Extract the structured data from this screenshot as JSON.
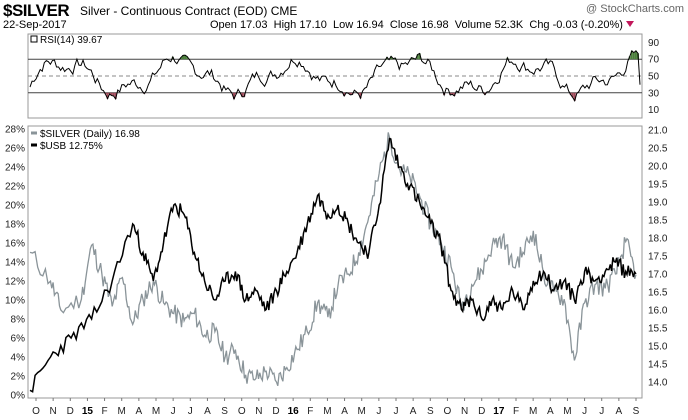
{
  "header": {
    "symbol": "$SILVER",
    "description": "Silver - Continuous Contract (EOD)",
    "exchange": "CME",
    "date": "22-Sep-2017",
    "open_label": "Open",
    "open": "17.03",
    "high_label": "High",
    "high": "17.10",
    "low_label": "Low",
    "low": "16.94",
    "close_label": "Close",
    "close": "16.98",
    "volume_label": "Volume",
    "volume": "52.3K",
    "chg_label": "Chg",
    "chg": "-0.03 (-0.20%)",
    "watermark": "@ StockCharts.com"
  },
  "chart_data": [
    {
      "type": "line",
      "title": "RSI(14)",
      "legend": [
        {
          "label": "RSI(14)",
          "value": "39.67"
        }
      ],
      "yticks": [
        90,
        70,
        50,
        30,
        10
      ],
      "ylim": [
        0,
        100
      ],
      "reference_lines": [
        70,
        50,
        30
      ],
      "series": [
        {
          "name": "RSI(14)",
          "last": 39.67
        }
      ]
    },
    {
      "type": "line",
      "title": "$SILVER (Daily) vs $USB",
      "legend": [
        {
          "label": "$SILVER (Daily)",
          "value": "16.98",
          "color": "#8a9499"
        },
        {
          "label": "$USB",
          "value": "12.75%",
          "color": "#000000"
        }
      ],
      "left_axis": {
        "ticks": [
          "0%",
          "2%",
          "4%",
          "6%",
          "8%",
          "10%",
          "12%",
          "14%",
          "16%",
          "18%",
          "20%",
          "22%",
          "24%",
          "26%",
          "28%"
        ],
        "ylim": [
          0,
          28
        ]
      },
      "right_axis": {
        "ticks": [
          "14.0",
          "14.5",
          "15.0",
          "15.5",
          "16.0",
          "16.5",
          "17.0",
          "17.5",
          "18.0",
          "18.5",
          "19.0",
          "19.5",
          "20.0",
          "20.5",
          "21.0"
        ],
        "ylim": [
          14.0,
          21.0
        ]
      },
      "x_labels": [
        "O",
        "N",
        "D",
        "15",
        "F",
        "M",
        "A",
        "M",
        "J",
        "J",
        "A",
        "S",
        "O",
        "N",
        "D",
        "16",
        "F",
        "M",
        "A",
        "M",
        "J",
        "J",
        "A",
        "S",
        "O",
        "N",
        "D",
        "17",
        "F",
        "M",
        "A",
        "M",
        "J",
        "J",
        "A",
        "S"
      ],
      "x_years": [
        "15",
        "16",
        "17"
      ],
      "series": [
        {
          "name": "$USB",
          "unit": "% change",
          "points": [
            [
              0,
              0.5
            ],
            [
              2,
              4
            ],
            [
              4,
              6
            ],
            [
              6,
              8
            ],
            [
              8,
              12
            ],
            [
              10,
              18
            ],
            [
              11,
              15
            ],
            [
              12,
              12
            ],
            [
              13,
              16
            ],
            [
              14,
              20
            ],
            [
              15,
              19
            ],
            [
              16,
              15
            ],
            [
              17,
              12
            ],
            [
              18,
              10
            ],
            [
              19,
              12
            ],
            [
              20,
              13
            ],
            [
              21,
              10
            ],
            [
              22,
              11
            ],
            [
              23,
              9
            ],
            [
              24,
              11
            ],
            [
              25,
              13
            ],
            [
              26,
              15
            ],
            [
              27,
              18
            ],
            [
              28,
              21
            ],
            [
              29,
              19
            ],
            [
              30,
              20
            ],
            [
              31,
              18
            ],
            [
              32,
              16
            ],
            [
              33,
              15
            ],
            [
              34,
              20
            ],
            [
              35,
              27
            ],
            [
              36,
              24
            ],
            [
              37,
              22
            ],
            [
              38,
              20
            ],
            [
              39,
              18
            ],
            [
              40,
              16
            ],
            [
              41,
              11
            ],
            [
              42,
              9
            ],
            [
              43,
              10
            ],
            [
              44,
              8
            ],
            [
              45,
              10
            ],
            [
              46,
              9
            ],
            [
              47,
              11
            ],
            [
              48,
              9
            ],
            [
              49,
              12
            ],
            [
              50,
              13
            ],
            [
              51,
              11
            ],
            [
              52,
              12
            ],
            [
              53,
              10
            ],
            [
              54,
              13
            ],
            [
              55,
              12
            ],
            [
              56,
              13
            ],
            [
              57,
              14
            ],
            [
              58,
              13
            ],
            [
              59,
              12.75
            ]
          ]
        },
        {
          "name": "$SILVER (Daily)",
          "unit": "price",
          "points": [
            [
              0,
              17.6
            ],
            [
              2,
              16.8
            ],
            [
              3,
              16.0
            ],
            [
              5,
              16.3
            ],
            [
              6,
              17.8
            ],
            [
              7,
              17.0
            ],
            [
              8,
              16.1
            ],
            [
              9,
              16.9
            ],
            [
              10,
              15.6
            ],
            [
              11,
              16.3
            ],
            [
              12,
              16.8
            ],
            [
              13,
              16.2
            ],
            [
              14,
              15.9
            ],
            [
              15,
              15.7
            ],
            [
              16,
              15.9
            ],
            [
              17,
              15.3
            ],
            [
              18,
              15.4
            ],
            [
              19,
              14.7
            ],
            [
              20,
              14.9
            ],
            [
              21,
              14.2
            ],
            [
              22,
              14.1
            ],
            [
              23,
              14.3
            ],
            [
              24,
              14.0
            ],
            [
              25,
              14.4
            ],
            [
              26,
              14.9
            ],
            [
              27,
              15.4
            ],
            [
              28,
              16.2
            ],
            [
              29,
              15.8
            ],
            [
              30,
              16.7
            ],
            [
              31,
              17.0
            ],
            [
              32,
              17.6
            ],
            [
              33,
              18.6
            ],
            [
              34,
              19.8
            ],
            [
              35,
              20.8
            ],
            [
              36,
              19.9
            ],
            [
              37,
              19.7
            ],
            [
              38,
              19.1
            ],
            [
              39,
              18.4
            ],
            [
              40,
              17.9
            ],
            [
              41,
              17.2
            ],
            [
              42,
              16.1
            ],
            [
              43,
              16.7
            ],
            [
              44,
              17.1
            ],
            [
              45,
              17.8
            ],
            [
              46,
              18.0
            ],
            [
              47,
              17.2
            ],
            [
              48,
              17.6
            ],
            [
              49,
              18.2
            ],
            [
              50,
              17.0
            ],
            [
              51,
              16.5
            ],
            [
              52,
              16.3
            ],
            [
              53,
              14.6
            ],
            [
              54,
              16.2
            ],
            [
              55,
              16.7
            ],
            [
              56,
              16.6
            ],
            [
              57,
              17.0
            ],
            [
              58,
              17.9
            ],
            [
              59,
              16.98
            ]
          ]
        }
      ]
    }
  ]
}
